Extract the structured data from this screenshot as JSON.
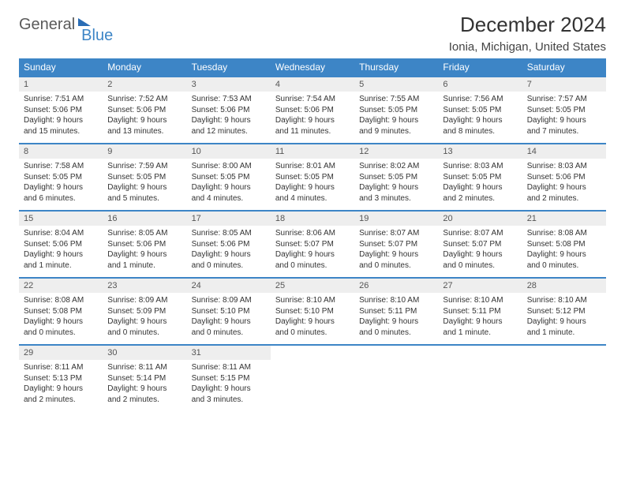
{
  "brand": {
    "part1": "General",
    "part2": "Blue"
  },
  "title": "December 2024",
  "location": "Ionia, Michigan, United States",
  "colors": {
    "header_bg": "#3d85c6",
    "header_text": "#ffffff",
    "daynum_bg": "#eeeeee",
    "rule": "#3d85c6",
    "text": "#333333",
    "background": "#ffffff"
  },
  "day_headers": [
    "Sunday",
    "Monday",
    "Tuesday",
    "Wednesday",
    "Thursday",
    "Friday",
    "Saturday"
  ],
  "weeks": [
    [
      {
        "n": "1",
        "sr": "Sunrise: 7:51 AM",
        "ss": "Sunset: 5:06 PM",
        "dl": "Daylight: 9 hours and 15 minutes."
      },
      {
        "n": "2",
        "sr": "Sunrise: 7:52 AM",
        "ss": "Sunset: 5:06 PM",
        "dl": "Daylight: 9 hours and 13 minutes."
      },
      {
        "n": "3",
        "sr": "Sunrise: 7:53 AM",
        "ss": "Sunset: 5:06 PM",
        "dl": "Daylight: 9 hours and 12 minutes."
      },
      {
        "n": "4",
        "sr": "Sunrise: 7:54 AM",
        "ss": "Sunset: 5:06 PM",
        "dl": "Daylight: 9 hours and 11 minutes."
      },
      {
        "n": "5",
        "sr": "Sunrise: 7:55 AM",
        "ss": "Sunset: 5:05 PM",
        "dl": "Daylight: 9 hours and 9 minutes."
      },
      {
        "n": "6",
        "sr": "Sunrise: 7:56 AM",
        "ss": "Sunset: 5:05 PM",
        "dl": "Daylight: 9 hours and 8 minutes."
      },
      {
        "n": "7",
        "sr": "Sunrise: 7:57 AM",
        "ss": "Sunset: 5:05 PM",
        "dl": "Daylight: 9 hours and 7 minutes."
      }
    ],
    [
      {
        "n": "8",
        "sr": "Sunrise: 7:58 AM",
        "ss": "Sunset: 5:05 PM",
        "dl": "Daylight: 9 hours and 6 minutes."
      },
      {
        "n": "9",
        "sr": "Sunrise: 7:59 AM",
        "ss": "Sunset: 5:05 PM",
        "dl": "Daylight: 9 hours and 5 minutes."
      },
      {
        "n": "10",
        "sr": "Sunrise: 8:00 AM",
        "ss": "Sunset: 5:05 PM",
        "dl": "Daylight: 9 hours and 4 minutes."
      },
      {
        "n": "11",
        "sr": "Sunrise: 8:01 AM",
        "ss": "Sunset: 5:05 PM",
        "dl": "Daylight: 9 hours and 4 minutes."
      },
      {
        "n": "12",
        "sr": "Sunrise: 8:02 AM",
        "ss": "Sunset: 5:05 PM",
        "dl": "Daylight: 9 hours and 3 minutes."
      },
      {
        "n": "13",
        "sr": "Sunrise: 8:03 AM",
        "ss": "Sunset: 5:05 PM",
        "dl": "Daylight: 9 hours and 2 minutes."
      },
      {
        "n": "14",
        "sr": "Sunrise: 8:03 AM",
        "ss": "Sunset: 5:06 PM",
        "dl": "Daylight: 9 hours and 2 minutes."
      }
    ],
    [
      {
        "n": "15",
        "sr": "Sunrise: 8:04 AM",
        "ss": "Sunset: 5:06 PM",
        "dl": "Daylight: 9 hours and 1 minute."
      },
      {
        "n": "16",
        "sr": "Sunrise: 8:05 AM",
        "ss": "Sunset: 5:06 PM",
        "dl": "Daylight: 9 hours and 1 minute."
      },
      {
        "n": "17",
        "sr": "Sunrise: 8:05 AM",
        "ss": "Sunset: 5:06 PM",
        "dl": "Daylight: 9 hours and 0 minutes."
      },
      {
        "n": "18",
        "sr": "Sunrise: 8:06 AM",
        "ss": "Sunset: 5:07 PM",
        "dl": "Daylight: 9 hours and 0 minutes."
      },
      {
        "n": "19",
        "sr": "Sunrise: 8:07 AM",
        "ss": "Sunset: 5:07 PM",
        "dl": "Daylight: 9 hours and 0 minutes."
      },
      {
        "n": "20",
        "sr": "Sunrise: 8:07 AM",
        "ss": "Sunset: 5:07 PM",
        "dl": "Daylight: 9 hours and 0 minutes."
      },
      {
        "n": "21",
        "sr": "Sunrise: 8:08 AM",
        "ss": "Sunset: 5:08 PM",
        "dl": "Daylight: 9 hours and 0 minutes."
      }
    ],
    [
      {
        "n": "22",
        "sr": "Sunrise: 8:08 AM",
        "ss": "Sunset: 5:08 PM",
        "dl": "Daylight: 9 hours and 0 minutes."
      },
      {
        "n": "23",
        "sr": "Sunrise: 8:09 AM",
        "ss": "Sunset: 5:09 PM",
        "dl": "Daylight: 9 hours and 0 minutes."
      },
      {
        "n": "24",
        "sr": "Sunrise: 8:09 AM",
        "ss": "Sunset: 5:10 PM",
        "dl": "Daylight: 9 hours and 0 minutes."
      },
      {
        "n": "25",
        "sr": "Sunrise: 8:10 AM",
        "ss": "Sunset: 5:10 PM",
        "dl": "Daylight: 9 hours and 0 minutes."
      },
      {
        "n": "26",
        "sr": "Sunrise: 8:10 AM",
        "ss": "Sunset: 5:11 PM",
        "dl": "Daylight: 9 hours and 0 minutes."
      },
      {
        "n": "27",
        "sr": "Sunrise: 8:10 AM",
        "ss": "Sunset: 5:11 PM",
        "dl": "Daylight: 9 hours and 1 minute."
      },
      {
        "n": "28",
        "sr": "Sunrise: 8:10 AM",
        "ss": "Sunset: 5:12 PM",
        "dl": "Daylight: 9 hours and 1 minute."
      }
    ],
    [
      {
        "n": "29",
        "sr": "Sunrise: 8:11 AM",
        "ss": "Sunset: 5:13 PM",
        "dl": "Daylight: 9 hours and 2 minutes."
      },
      {
        "n": "30",
        "sr": "Sunrise: 8:11 AM",
        "ss": "Sunset: 5:14 PM",
        "dl": "Daylight: 9 hours and 2 minutes."
      },
      {
        "n": "31",
        "sr": "Sunrise: 8:11 AM",
        "ss": "Sunset: 5:15 PM",
        "dl": "Daylight: 9 hours and 3 minutes."
      },
      {
        "empty": true
      },
      {
        "empty": true
      },
      {
        "empty": true
      },
      {
        "empty": true
      }
    ]
  ]
}
